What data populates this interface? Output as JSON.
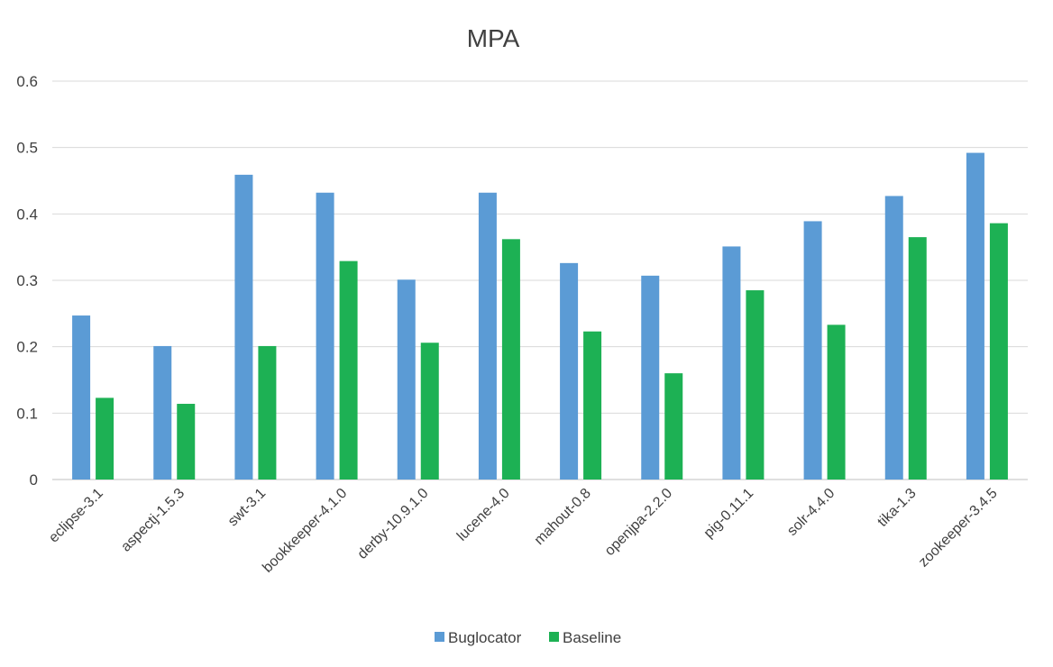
{
  "chart_data": {
    "type": "bar",
    "title": "MPA",
    "xlabel": "",
    "ylabel": "",
    "ylim": [
      0,
      0.6
    ],
    "yticks": [
      "0",
      "0.1",
      "0.2",
      "0.3",
      "0.4",
      "0.5",
      "0.6"
    ],
    "grid": true,
    "legend_position": "bottom",
    "categories": [
      "eclipse-3.1",
      "aspectj-1.5.3",
      "swt-3.1",
      "bookkeeper-4.1.0",
      "derby-10.9.1.0",
      "lucene-4.0",
      "mahout-0.8",
      "openjpa-2.2.0",
      "pig-0.11.1",
      "solr-4.4.0",
      "tika-1.3",
      "zookeeper-3.4.5"
    ],
    "series": [
      {
        "name": "Buglocator",
        "color": "#5b9bd5",
        "values": [
          0.247,
          0.201,
          0.459,
          0.432,
          0.301,
          0.432,
          0.326,
          0.307,
          0.351,
          0.389,
          0.427,
          0.492
        ]
      },
      {
        "name": "Baseline",
        "color": "#1db154",
        "values": [
          0.123,
          0.114,
          0.201,
          0.329,
          0.206,
          0.362,
          0.223,
          0.16,
          0.285,
          0.233,
          0.365,
          0.386
        ]
      }
    ]
  }
}
